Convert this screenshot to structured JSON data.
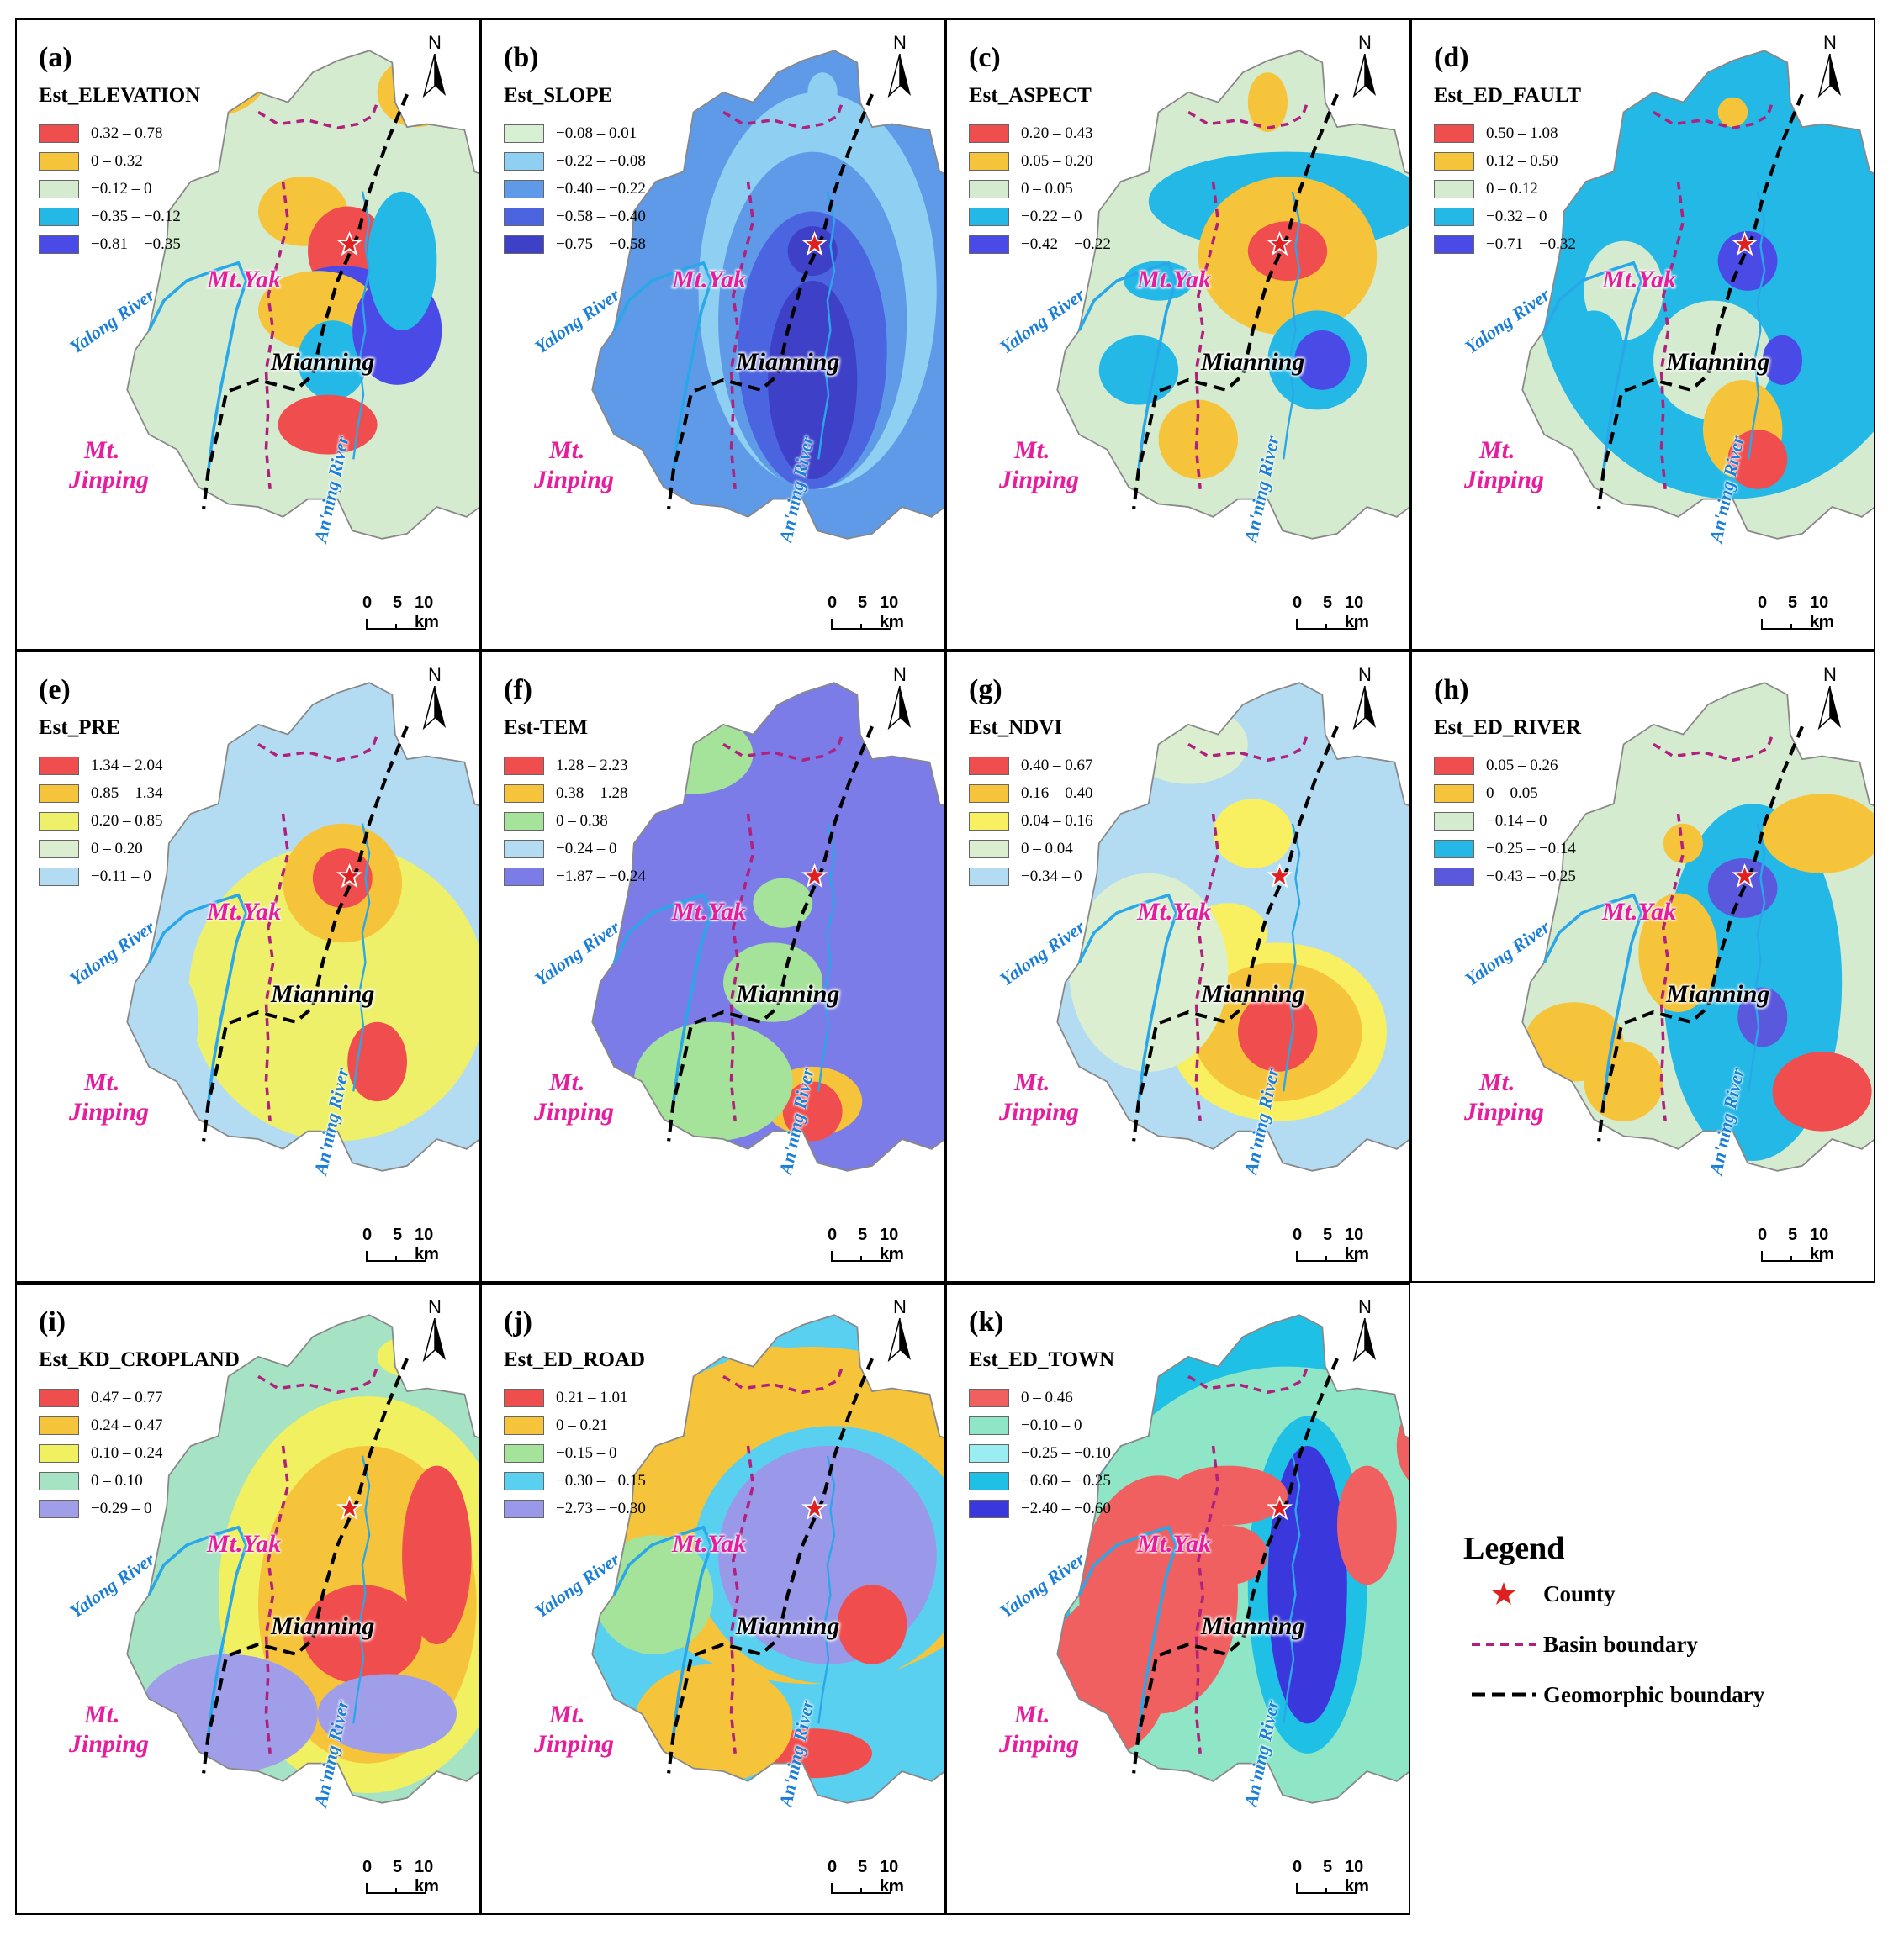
{
  "labels": {
    "mt_yak": "Mt.Yak",
    "mt_jinping_1": "Mt.",
    "mt_jinping_2": "Jinping",
    "mianning": "Mianning",
    "yalong_river": "Yalong River",
    "anning_river": "An'ning River",
    "north": "N",
    "scale_0": "0",
    "scale_5": "5",
    "scale_10": "10 km"
  },
  "legend": {
    "title": "Legend",
    "county": "County",
    "basin": "Basin boundary",
    "geomorphic": "Geomorphic boundary"
  },
  "colors": {
    "basin_boundary": "#b0217e",
    "geomorphic_boundary": "#000000",
    "river": "#2aa7e8",
    "county_star": "#e02020"
  },
  "panels": [
    {
      "id": "a",
      "label": "(a)",
      "title": "Est_ELEVATION",
      "classes": [
        {
          "range": "0.32 – 0.78",
          "color": "#f04e4e"
        },
        {
          "range": "0 – 0.32",
          "color": "#f6c43a"
        },
        {
          "range": "−0.12 – 0",
          "color": "#d5ebd0"
        },
        {
          "range": "−0.35 – −0.12",
          "color": "#24b8e6"
        },
        {
          "range": "−0.81 – −0.35",
          "color": "#4a4ae6"
        }
      ]
    },
    {
      "id": "b",
      "label": "(b)",
      "title": "Est_SLOPE",
      "classes": [
        {
          "range": "−0.08 – 0.01",
          "color": "#d7efd3"
        },
        {
          "range": "−0.22 – −0.08",
          "color": "#8fd0f2"
        },
        {
          "range": "−0.40 – −0.22",
          "color": "#5f9ae8"
        },
        {
          "range": "−0.58 – −0.40",
          "color": "#4b64e0"
        },
        {
          "range": "−0.75 – −0.58",
          "color": "#3e40c8"
        }
      ]
    },
    {
      "id": "c",
      "label": "(c)",
      "title": "Est_ASPECT",
      "classes": [
        {
          "range": "0.20 – 0.43",
          "color": "#f04e4e"
        },
        {
          "range": "0.05 – 0.20",
          "color": "#f6c43a"
        },
        {
          "range": "0 – 0.05",
          "color": "#d5ebd0"
        },
        {
          "range": "−0.22 – 0",
          "color": "#24b8e6"
        },
        {
          "range": "−0.42 – −0.22",
          "color": "#4a4ae6"
        }
      ]
    },
    {
      "id": "d",
      "label": "(d)",
      "title": "Est_ED_FAULT",
      "classes": [
        {
          "range": "0.50 – 1.08",
          "color": "#f04e4e"
        },
        {
          "range": "0.12 – 0.50",
          "color": "#f6c43a"
        },
        {
          "range": "0 – 0.12",
          "color": "#d5ebd0"
        },
        {
          "range": "−0.32 – 0",
          "color": "#24b8e6"
        },
        {
          "range": "−0.71 – −0.32",
          "color": "#4a4ae6"
        }
      ]
    },
    {
      "id": "e",
      "label": "(e)",
      "title": "Est_PRE",
      "classes": [
        {
          "range": "1.34 – 2.04",
          "color": "#f04e4e"
        },
        {
          "range": "0.85 – 1.34",
          "color": "#f6c43a"
        },
        {
          "range": "0.20 – 0.85",
          "color": "#eef06a"
        },
        {
          "range": "0 – 0.20",
          "color": "#dbefd0"
        },
        {
          "range": "−0.11 – 0",
          "color": "#b3dcf2"
        }
      ]
    },
    {
      "id": "f",
      "label": "(f)",
      "title": "Est-TEM",
      "classes": [
        {
          "range": "1.28 – 2.23",
          "color": "#f04e4e"
        },
        {
          "range": "0.38 – 1.28",
          "color": "#f6c43a"
        },
        {
          "range": "0 – 0.38",
          "color": "#a5e39a"
        },
        {
          "range": "−0.24 – 0",
          "color": "#b3dcf2"
        },
        {
          "range": "−1.87 – −0.24",
          "color": "#7c7ce8"
        }
      ]
    },
    {
      "id": "g",
      "label": "(g)",
      "title": "Est_NDVI",
      "classes": [
        {
          "range": "0.40 – 0.67",
          "color": "#f04e4e"
        },
        {
          "range": "0.16 – 0.40",
          "color": "#f6c43a"
        },
        {
          "range": "0.04 – 0.16",
          "color": "#f8f060"
        },
        {
          "range": "0 – 0.04",
          "color": "#dbefd0"
        },
        {
          "range": "−0.34 – 0",
          "color": "#b3dcf2"
        }
      ]
    },
    {
      "id": "h",
      "label": "(h)",
      "title": "Est_ED_RIVER",
      "classes": [
        {
          "range": "0.05 – 0.26",
          "color": "#f04e4e"
        },
        {
          "range": "0 – 0.05",
          "color": "#f6c43a"
        },
        {
          "range": "−0.14 – 0",
          "color": "#d5ebd0"
        },
        {
          "range": "−0.25 – −0.14",
          "color": "#24b8e6"
        },
        {
          "range": "−0.43 – −0.25",
          "color": "#5a58dc"
        }
      ]
    },
    {
      "id": "i",
      "label": "(i)",
      "title": "Est_KD_CROPLAND",
      "classes": [
        {
          "range": "0.47 – 0.77",
          "color": "#f04e4e"
        },
        {
          "range": "0.24 – 0.47",
          "color": "#f6c43a"
        },
        {
          "range": "0.10 – 0.24",
          "color": "#f0f060"
        },
        {
          "range": "0 – 0.10",
          "color": "#a6e3c4"
        },
        {
          "range": "−0.29 – 0",
          "color": "#a09ee8"
        }
      ]
    },
    {
      "id": "j",
      "label": "(j)",
      "title": "Est_ED_ROAD",
      "classes": [
        {
          "range": "0.21 – 1.01",
          "color": "#f04e4e"
        },
        {
          "range": "0 – 0.21",
          "color": "#f6c43a"
        },
        {
          "range": "−0.15 – 0",
          "color": "#a5e39a"
        },
        {
          "range": "−0.30 – −0.15",
          "color": "#5ad0f0"
        },
        {
          "range": "−2.73 – −0.30",
          "color": "#9a98e8"
        }
      ]
    },
    {
      "id": "k",
      "label": "(k)",
      "title": "Est_ED_TOWN",
      "classes": [
        {
          "range": "0 – 0.46",
          "color": "#f06060"
        },
        {
          "range": "−0.10 – 0",
          "color": "#8ee6c6"
        },
        {
          "range": "−0.25 – −0.10",
          "color": "#9aeef2"
        },
        {
          "range": "−0.60 – −0.25",
          "color": "#1ec0e6"
        },
        {
          "range": "−2.40 – −0.60",
          "color": "#3a38dc"
        }
      ]
    }
  ]
}
